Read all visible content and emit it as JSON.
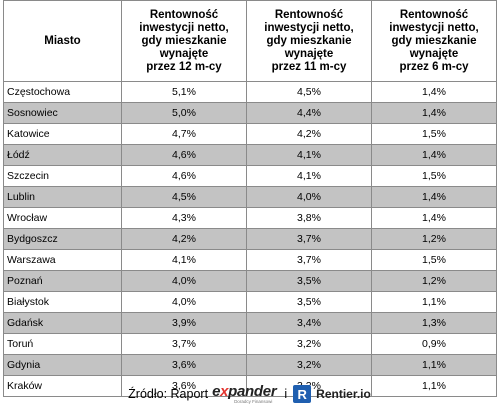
{
  "table": {
    "headers": {
      "city": "Miasto",
      "col12": [
        "Rentowność",
        "inwestycji netto,",
        "gdy mieszkanie",
        "wynajęte",
        "przez 12 m-cy"
      ],
      "col11": [
        "Rentowność",
        "inwestycji netto,",
        "gdy mieszkanie",
        "wynajęte",
        "przez 11 m-cy"
      ],
      "col6": [
        "Rentowność",
        "inwestycji netto,",
        "gdy mieszkanie",
        "wynajęte",
        "przez 6 m-cy"
      ]
    },
    "rows": [
      {
        "city": "Częstochowa",
        "m12": "5,1%",
        "m11": "4,5%",
        "m6": "1,4%"
      },
      {
        "city": "Sosnowiec",
        "m12": "5,0%",
        "m11": "4,4%",
        "m6": "1,4%"
      },
      {
        "city": "Katowice",
        "m12": "4,7%",
        "m11": "4,2%",
        "m6": "1,5%"
      },
      {
        "city": "Łódź",
        "m12": "4,6%",
        "m11": "4,1%",
        "m6": "1,4%"
      },
      {
        "city": "Szczecin",
        "m12": "4,6%",
        "m11": "4,1%",
        "m6": "1,5%"
      },
      {
        "city": "Lublin",
        "m12": "4,5%",
        "m11": "4,0%",
        "m6": "1,4%"
      },
      {
        "city": "Wrocław",
        "m12": "4,3%",
        "m11": "3,8%",
        "m6": "1,4%"
      },
      {
        "city": "Bydgoszcz",
        "m12": "4,2%",
        "m11": "3,7%",
        "m6": "1,2%"
      },
      {
        "city": "Warszawa",
        "m12": "4,1%",
        "m11": "3,7%",
        "m6": "1,5%"
      },
      {
        "city": "Poznań",
        "m12": "4,0%",
        "m11": "3,5%",
        "m6": "1,2%"
      },
      {
        "city": "Białystok",
        "m12": "4,0%",
        "m11": "3,5%",
        "m6": "1,1%"
      },
      {
        "city": "Gdańsk",
        "m12": "3,9%",
        "m11": "3,4%",
        "m6": "1,3%"
      },
      {
        "city": "Toruń",
        "m12": "3,7%",
        "m11": "3,2%",
        "m6": "0,9%"
      },
      {
        "city": "Gdynia",
        "m12": "3,6%",
        "m11": "3,2%",
        "m6": "1,1%"
      },
      {
        "city": "Kraków",
        "m12": "3,6%",
        "m11": "3,2%",
        "m6": "1,1%"
      }
    ],
    "shade_color": "#c3c3c3"
  },
  "source": {
    "label": "Źródło: Raport",
    "expander_prefix": "e",
    "expander_x": "x",
    "expander_rest": "pander",
    "expander_tagline": "Doradcy Finansowi",
    "conjunction": "i",
    "rentier_badge": "R",
    "rentier_name": "Rentier.io",
    "accent_red": "#e3342f",
    "rentier_blue": "#1f5fb0"
  }
}
